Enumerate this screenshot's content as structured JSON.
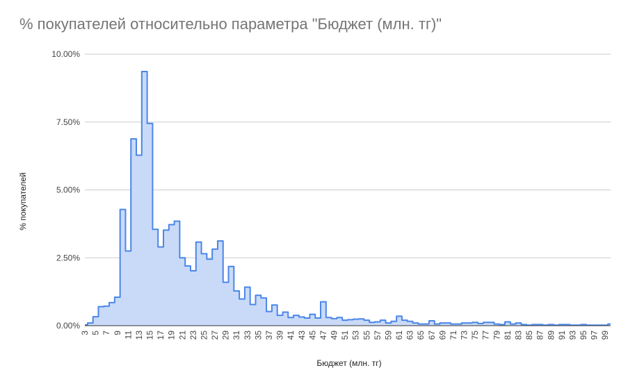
{
  "chart_data": {
    "type": "area",
    "title": "% покупателей относительно параметра \"Бюджет (млн. тг)\"",
    "xlabel": "Бюджет (млн. тг)",
    "ylabel": "% покупателей",
    "ylim": [
      0,
      10
    ],
    "yticks": [
      "0.00%",
      "2.50%",
      "5.00%",
      "7.50%",
      "10.00%"
    ],
    "xticks": [
      "3",
      "5",
      "7",
      "9",
      "11",
      "13",
      "15",
      "17",
      "19",
      "21",
      "23",
      "25",
      "27",
      "29",
      "31",
      "33",
      "35",
      "37",
      "39",
      "41",
      "43",
      "45",
      "47",
      "49",
      "51",
      "53",
      "55",
      "57",
      "59",
      "61",
      "63",
      "65",
      "67",
      "69",
      "71",
      "73",
      "75",
      "77",
      "79",
      "81",
      "83",
      "85",
      "87",
      "89",
      "91",
      "93",
      "95",
      "97",
      "99"
    ],
    "x": [
      3,
      4,
      5,
      6,
      7,
      8,
      9,
      10,
      11,
      12,
      13,
      14,
      15,
      16,
      17,
      18,
      19,
      20,
      21,
      22,
      23,
      24,
      25,
      26,
      27,
      28,
      29,
      30,
      31,
      32,
      33,
      34,
      35,
      36,
      37,
      38,
      39,
      40,
      41,
      42,
      43,
      44,
      45,
      46,
      47,
      48,
      49,
      50,
      51,
      52,
      53,
      54,
      55,
      56,
      57,
      58,
      59,
      60,
      61,
      62,
      63,
      64,
      65,
      66,
      67,
      68,
      69,
      70,
      71,
      72,
      73,
      74,
      75,
      76,
      77,
      78,
      79,
      80,
      81,
      82,
      83,
      84,
      85,
      86,
      87,
      88,
      89,
      90,
      91,
      92,
      93,
      94,
      95,
      96,
      97,
      98,
      99,
      100
    ],
    "values": [
      0.03,
      0.1,
      0.33,
      0.7,
      0.72,
      0.85,
      1.05,
      4.28,
      2.75,
      6.88,
      6.28,
      9.36,
      7.45,
      3.55,
      2.9,
      3.52,
      3.72,
      3.85,
      2.5,
      2.2,
      2.02,
      3.08,
      2.65,
      2.45,
      2.82,
      3.12,
      1.6,
      2.18,
      1.28,
      0.98,
      1.42,
      0.78,
      1.12,
      1.02,
      0.52,
      0.76,
      0.38,
      0.5,
      0.3,
      0.38,
      0.32,
      0.28,
      0.42,
      0.28,
      0.88,
      0.3,
      0.26,
      0.3,
      0.2,
      0.22,
      0.24,
      0.25,
      0.2,
      0.12,
      0.14,
      0.2,
      0.1,
      0.16,
      0.35,
      0.2,
      0.16,
      0.1,
      0.06,
      0.06,
      0.18,
      0.06,
      0.1,
      0.1,
      0.06,
      0.06,
      0.1,
      0.1,
      0.12,
      0.08,
      0.12,
      0.12,
      0.06,
      0.04,
      0.14,
      0.06,
      0.1,
      0.04,
      0.02,
      0.04,
      0.04,
      0.02,
      0.04,
      0.02,
      0.04,
      0.04,
      0.02,
      0.02,
      0.04,
      0.02,
      0.02,
      0.02,
      0.02,
      0.06
    ],
    "grid": true,
    "colors": {
      "line": "#4a86e8",
      "fill": "#c9daf8",
      "grid": "#cccccc",
      "axis": "#333333"
    }
  }
}
